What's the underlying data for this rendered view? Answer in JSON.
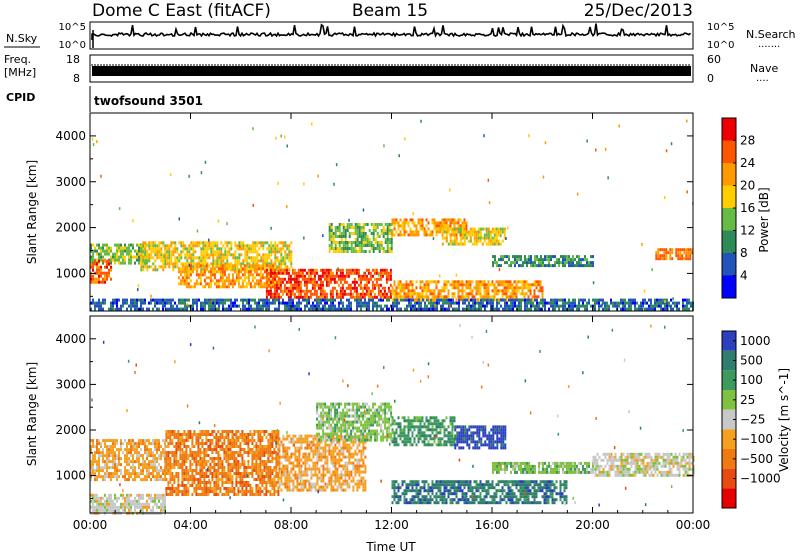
{
  "header": {
    "station": "Dome C East (fitACF)",
    "beam": "Beam 15",
    "date": "25/Dec/2013"
  },
  "noise_panel": {
    "left_label": "N.Sky",
    "right_label": "N.Search",
    "right_dots": ".......",
    "left_ticks": [
      "10^5",
      "10^0"
    ],
    "right_ticks": [
      "10^5",
      "10^0"
    ]
  },
  "freq_panel": {
    "label_line1": "Freq.",
    "label_line2": "[MHz]",
    "left_ticks": [
      "18",
      "8"
    ],
    "right_ticks": [
      "60",
      "0"
    ],
    "right_label": "Nave",
    "right_dots": "....",
    "freq_level_mhz": 11,
    "nave_level": 30
  },
  "cpid": {
    "label": "CPID",
    "program": "twofsound 3501"
  },
  "colors": {
    "power": [
      "#0000ff",
      "#2255bb",
      "#2e8b57",
      "#66bb44",
      "#ffcc00",
      "#ff9900",
      "#ff5500",
      "#ee0000"
    ],
    "velocity": [
      "#2b3fbf",
      "#2e7d6e",
      "#3c9a5f",
      "#7fc241",
      "#c8c8c8",
      "#f5a020",
      "#f07a10",
      "#e84a10",
      "#e60000"
    ]
  },
  "chart_data": [
    {
      "type": "heatmap",
      "title": "",
      "xlabel": "",
      "ylabel": "Slant Range [km]",
      "x_ticks": [
        "00:00",
        "04:00",
        "08:00",
        "12:00",
        "16:00",
        "20:00",
        "00:00"
      ],
      "xlim_hours": [
        0,
        24
      ],
      "ylim": [
        180,
        4500
      ],
      "y_ticks": [
        "1000",
        "2000",
        "3000",
        "4000"
      ],
      "y_tick_values": [
        1000,
        2000,
        3000,
        4000
      ],
      "colorbar": {
        "label": "Power [dB]",
        "tick_labels": [
          "4",
          "8",
          "12",
          "16",
          "20",
          "24",
          "28"
        ],
        "range": [
          0,
          32
        ]
      },
      "echo_regions": [
        {
          "t0": 0.0,
          "t1": 2.3,
          "r0": 1200,
          "r1": 1650,
          "level": 14
        },
        {
          "t0": 0.0,
          "t1": 0.8,
          "r0": 800,
          "r1": 1300,
          "level": 26
        },
        {
          "t0": 2.0,
          "t1": 8.0,
          "r0": 1100,
          "r1": 1700,
          "level": 18
        },
        {
          "t0": 3.5,
          "t1": 7.5,
          "r0": 700,
          "r1": 1200,
          "level": 22
        },
        {
          "t0": 7.0,
          "t1": 12.0,
          "r0": 500,
          "r1": 1100,
          "level": 27
        },
        {
          "t0": 9.5,
          "t1": 12.0,
          "r0": 1500,
          "r1": 2100,
          "level": 14
        },
        {
          "t0": 12.0,
          "t1": 15.0,
          "r0": 1850,
          "r1": 2200,
          "level": 22
        },
        {
          "t0": 14.0,
          "t1": 16.5,
          "r0": 1650,
          "r1": 2000,
          "level": 18
        },
        {
          "t0": 12.0,
          "t1": 18.0,
          "r0": 450,
          "r1": 850,
          "level": 22
        },
        {
          "t0": 16.0,
          "t1": 20.0,
          "r0": 1150,
          "r1": 1400,
          "level": 10
        },
        {
          "t0": 22.5,
          "t1": 24.0,
          "r0": 1300,
          "r1": 1550,
          "level": 24
        },
        {
          "t0": 0.0,
          "t1": 24.0,
          "r0": 200,
          "r1": 450,
          "level": 7
        }
      ]
    },
    {
      "type": "heatmap",
      "title": "",
      "xlabel": "Time UT",
      "ylabel": "Slant Range [km]",
      "x_ticks": [
        "00:00",
        "04:00",
        "08:00",
        "12:00",
        "16:00",
        "20:00",
        "00:00"
      ],
      "xlim_hours": [
        0,
        24
      ],
      "ylim": [
        180,
        4500
      ],
      "y_ticks": [
        "1000",
        "2000",
        "3000",
        "4000"
      ],
      "y_tick_values": [
        1000,
        2000,
        3000,
        4000
      ],
      "colorbar": {
        "label": "Velocity [m s^-1]",
        "tick_labels": [
          "1000",
          "500",
          "100",
          "25",
          "−25",
          "−100",
          "−500",
          "−1000"
        ]
      },
      "echo_regions": [
        {
          "t0": 0.0,
          "t1": 3.0,
          "r0": 900,
          "r1": 1800,
          "level": "-100"
        },
        {
          "t0": 3.0,
          "t1": 7.5,
          "r0": 600,
          "r1": 2000,
          "level": "-500"
        },
        {
          "t0": 7.5,
          "t1": 11.0,
          "r0": 700,
          "r1": 1900,
          "level": "-100"
        },
        {
          "t0": 9.0,
          "t1": 12.0,
          "r0": 1800,
          "r1": 2600,
          "level": "25"
        },
        {
          "t0": 12.0,
          "t1": 14.5,
          "r0": 1700,
          "r1": 2300,
          "level": "100"
        },
        {
          "t0": 14.5,
          "t1": 16.5,
          "r0": 1600,
          "r1": 2100,
          "level": "1000"
        },
        {
          "t0": 12.0,
          "t1": 19.0,
          "r0": 400,
          "r1": 900,
          "level": "500"
        },
        {
          "t0": 16.0,
          "t1": 20.0,
          "r0": 1100,
          "r1": 1300,
          "level": "25"
        },
        {
          "t0": 20.0,
          "t1": 24.0,
          "r0": 1000,
          "r1": 1500,
          "level": "-25"
        },
        {
          "t0": 0.0,
          "t1": 3.0,
          "r0": 200,
          "r1": 600,
          "level": "-25"
        }
      ]
    }
  ]
}
